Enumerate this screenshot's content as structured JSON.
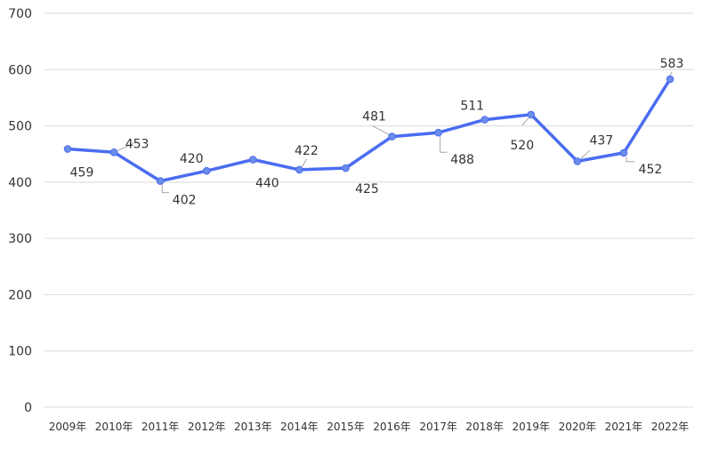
{
  "chart_data": {
    "type": "line",
    "title": "",
    "xlabel": "",
    "ylabel": "",
    "ylim": [
      0,
      700
    ],
    "y_ticks": [
      "0",
      "100",
      "200",
      "300",
      "400",
      "500",
      "600",
      "700"
    ],
    "grid": true,
    "legend": "none",
    "categories": [
      "2009年",
      "2010年",
      "2011年",
      "2012年",
      "2013年",
      "2014年",
      "2015年",
      "2016年",
      "2017年",
      "2018年",
      "2019年",
      "2020年",
      "2021年",
      "2022年"
    ],
    "series": [
      {
        "values": [
          459,
          453,
          402,
          420,
          440,
          422,
          425,
          481,
          488,
          511,
          520,
          437,
          452,
          583
        ],
        "color": "#4a6cf0",
        "marker_color": "#6b8ce8"
      }
    ],
    "data_labels": [
      "459",
      "453",
      "402",
      "420",
      "440",
      "422",
      "425",
      "481",
      "488",
      "511",
      "520",
      "437",
      "452",
      "583"
    ]
  }
}
